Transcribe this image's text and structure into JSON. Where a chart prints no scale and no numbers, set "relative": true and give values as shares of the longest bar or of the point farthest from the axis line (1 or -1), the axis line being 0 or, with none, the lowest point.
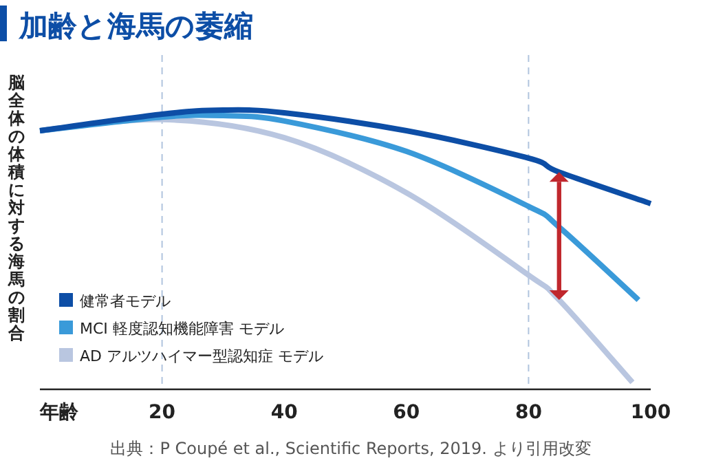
{
  "chart_data": {
    "type": "line",
    "title": "加齢と海馬の萎縮",
    "ylabel": "脳全体の体積に対する海馬の割合",
    "xlabel": "年齢",
    "relative": true,
    "xlim": [
      0,
      100
    ],
    "xticks": [
      20,
      40,
      60,
      80,
      100
    ],
    "grid": false,
    "legend": "bottom left",
    "marker": "none",
    "line_style": "solid",
    "series": [
      {
        "name": "健常者モデル",
        "color": "#0d4ea6",
        "x": [
          0,
          20,
          30,
          40,
          60,
          80,
          85,
          100
        ],
        "values": [
          0.926,
          0.985,
          1,
          0.99,
          0.926,
          0.828,
          0.778,
          0.665
        ]
      },
      {
        "name": "MCI 軽度認知機能障害 モデル",
        "color": "#3a9ad9",
        "x": [
          0,
          20,
          30,
          40,
          60,
          80,
          85,
          98
        ],
        "values": [
          0.926,
          0.975,
          0.98,
          0.961,
          0.852,
          0.655,
          0.581,
          0.32
        ]
      },
      {
        "name": "AD アルツハイマー型認知症 モデル",
        "color": "#b9c6e0",
        "x": [
          0,
          20,
          40,
          60,
          80,
          85,
          97
        ],
        "values": [
          0.926,
          0.966,
          0.901,
          0.704,
          0.409,
          0.32,
          0.025
        ]
      }
    ],
    "ref_lines": [
      {
        "axis": "x",
        "value": 20,
        "color": "#b0c4de",
        "line_style": "dashed"
      },
      {
        "axis": "x",
        "value": 80,
        "color": "#b0c4de",
        "line_style": "dashed"
      }
    ],
    "annotations": [
      "出典：P Coupé et al., Scientific Reports, 2019. より引用改変"
    ]
  }
}
